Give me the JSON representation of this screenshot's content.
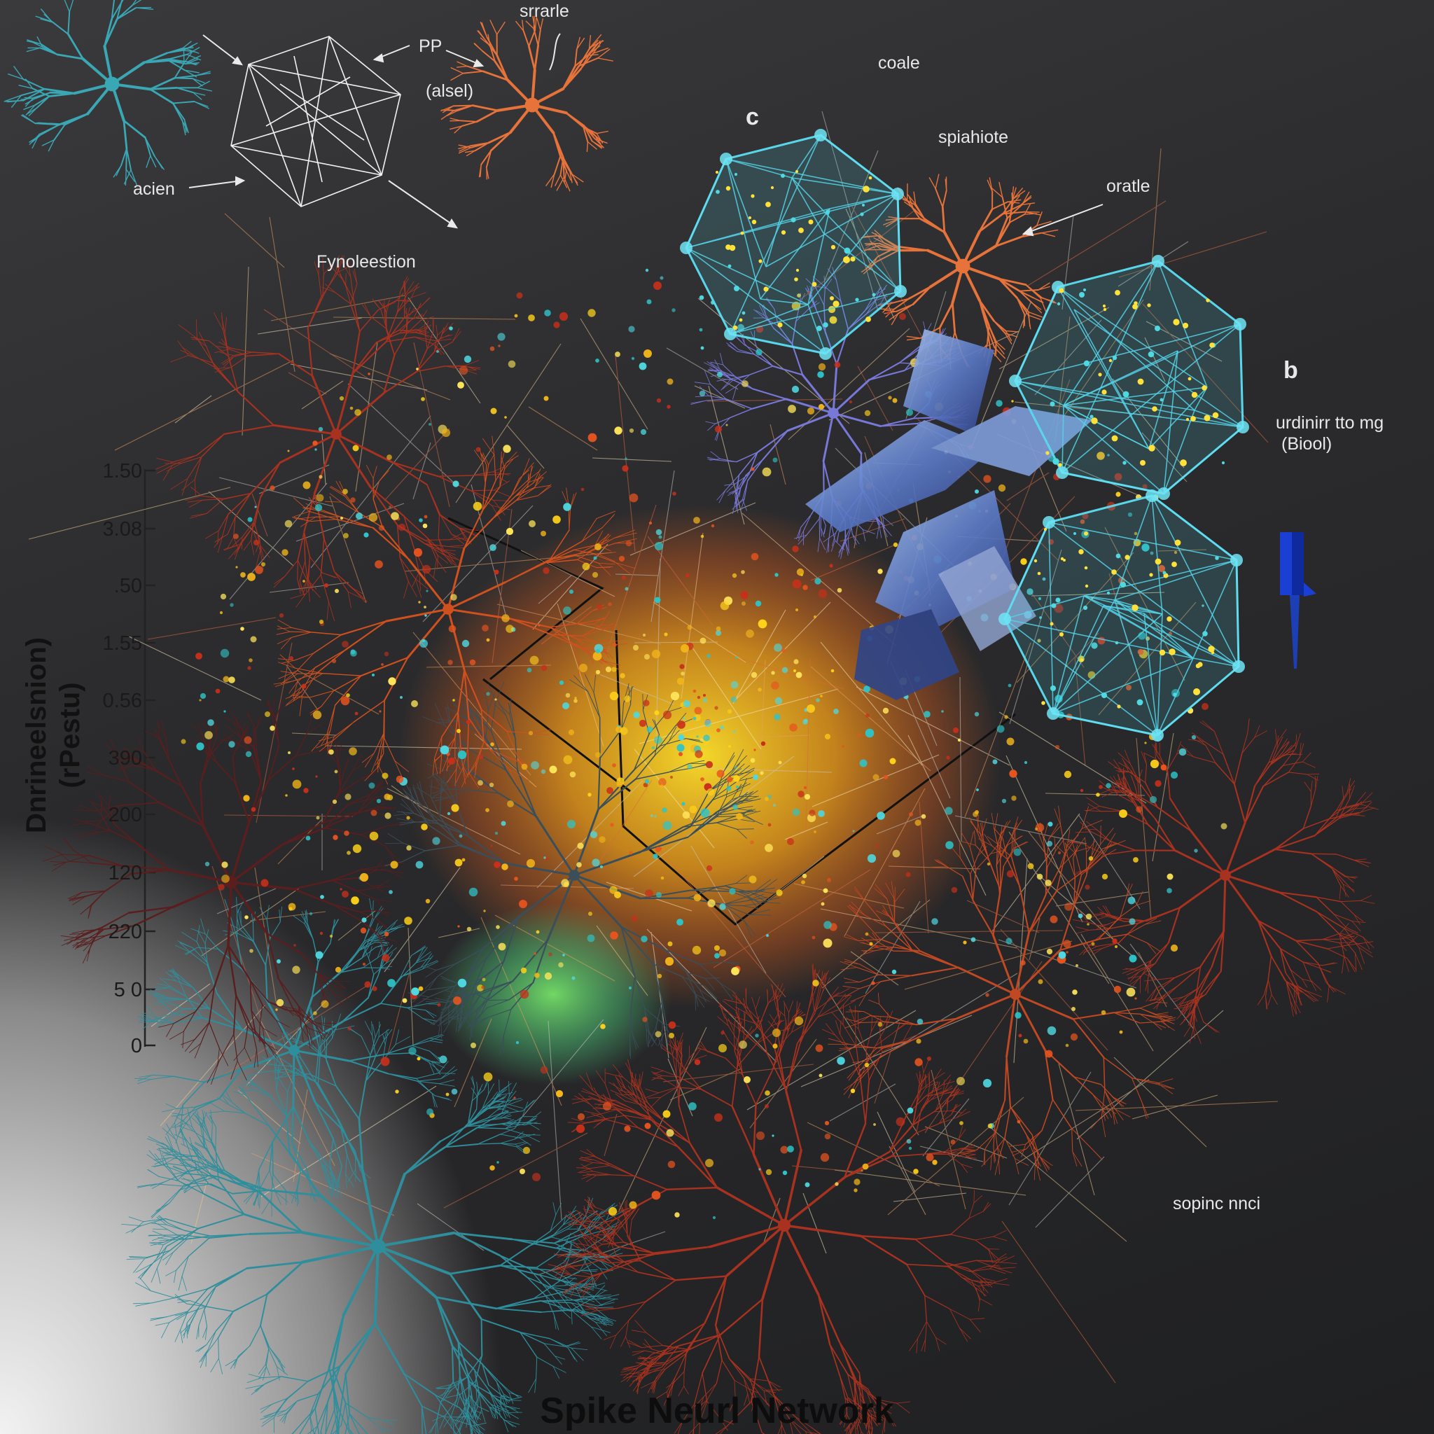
{
  "title": "Spike Neurl Network",
  "y_axis": {
    "label_line1": "Dnrineelsnion)",
    "label_line2": "(rPestu)",
    "ticks": [
      "1.50",
      "3.08",
      ".50",
      "1.55",
      "0.56",
      "390",
      "200",
      "120",
      "220",
      "5 0",
      "0"
    ]
  },
  "annotations": {
    "srrarle": "srrarle",
    "pp": "PP",
    "alsel": "(alsel)",
    "coale": "coale",
    "c": "c",
    "spiahiote": "spiahiote",
    "oratle": "oratle",
    "acien": "acien",
    "fynolestion": "Fynoleestion",
    "b": "b",
    "b_desc_1": "urdinirr tto mg",
    "b_desc_2": "(Biool)",
    "sopinc": "sopinc nnci"
  },
  "colors": {
    "background": "#2a2b2d",
    "cyan_mesh": "#4fd2e6",
    "orange_neuron": "#e8733a",
    "teal_neuron": "#3aa3b0",
    "red_neuron": "#b3321f",
    "blue_probe": "#1a3fd1"
  }
}
